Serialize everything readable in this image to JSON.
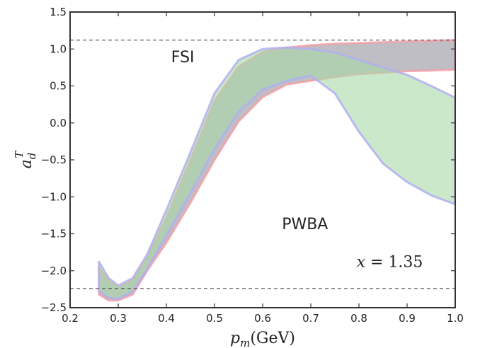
{
  "chart_data": {
    "type": "area",
    "title": "",
    "xlabel": "p_m(GeV)",
    "xlabel_parts": {
      "var": "p",
      "sub": "m",
      "unit": "(GeV)"
    },
    "ylabel": "a_d^T",
    "ylabel_parts": {
      "var": "a",
      "sub": "d",
      "sup": "T"
    },
    "xlim": [
      0.2,
      1.0
    ],
    "ylim": [
      -2.5,
      1.5
    ],
    "xticks": [
      0.2,
      0.3,
      0.4,
      0.5,
      0.6,
      0.7,
      0.8,
      0.9,
      1.0
    ],
    "xtick_labels": [
      "0.2",
      "0.3",
      "0.4",
      "0.5",
      "0.6",
      "0.7",
      "0.8",
      "0.9",
      "1.0"
    ],
    "yticks": [
      -2.5,
      -2.0,
      -1.5,
      -1.0,
      -0.5,
      0.0,
      0.5,
      1.0,
      1.5
    ],
    "ytick_labels": [
      "−2.5",
      "−2.0",
      "−1.5",
      "−1.0",
      "−0.5",
      "0.0",
      "0.5",
      "1.0",
      "1.5"
    ],
    "grid": false,
    "reference_lines": [
      {
        "y": 1.12,
        "style": "dashed"
      },
      {
        "y": -2.24,
        "style": "dashed"
      }
    ],
    "annotations": [
      {
        "text": "FSI",
        "x": 0.41,
        "y": 0.82
      },
      {
        "text": "PWBA",
        "x": 0.64,
        "y": -1.44
      },
      {
        "text": "x = 1.35",
        "var": "x",
        "rel": " = ",
        "val": "1.35",
        "x": 0.795,
        "y": -1.95
      }
    ],
    "series": [
      {
        "fill": "#a8a8b0",
        "edge": "#f4a0a8",
        "x": [
          0.26,
          0.28,
          0.3,
          0.33,
          0.36,
          0.4,
          0.45,
          0.5,
          0.55,
          0.6,
          0.65,
          0.7,
          0.75,
          0.8,
          0.85,
          0.9,
          0.95,
          1.0
        ],
        "upper": [
          -1.96,
          -2.13,
          -2.22,
          -2.13,
          -1.82,
          -1.28,
          -0.5,
          0.3,
          0.76,
          0.96,
          1.02,
          1.05,
          1.07,
          1.08,
          1.09,
          1.1,
          1.11,
          1.12
        ],
        "lower": [
          -2.32,
          -2.4,
          -2.4,
          -2.32,
          -2.0,
          -1.62,
          -1.08,
          -0.5,
          0.02,
          0.35,
          0.52,
          0.57,
          0.62,
          0.66,
          0.68,
          0.7,
          0.71,
          0.72
        ]
      },
      {
        "fill": "#a8d8a8",
        "edge": "#b0b0f0",
        "x": [
          0.26,
          0.28,
          0.3,
          0.33,
          0.36,
          0.4,
          0.45,
          0.5,
          0.55,
          0.6,
          0.65,
          0.7,
          0.75,
          0.8,
          0.85,
          0.9,
          0.95,
          1.0
        ],
        "upper": [
          -1.88,
          -2.1,
          -2.2,
          -2.1,
          -1.78,
          -1.18,
          -0.4,
          0.4,
          0.85,
          1.0,
          1.02,
          1.0,
          0.95,
          0.85,
          0.75,
          0.65,
          0.5,
          0.34
        ],
        "lower": [
          -2.27,
          -2.37,
          -2.38,
          -2.28,
          -1.98,
          -1.52,
          -0.95,
          -0.35,
          0.15,
          0.45,
          0.57,
          0.64,
          0.4,
          -0.12,
          -0.55,
          -0.8,
          -0.98,
          -1.1
        ]
      }
    ]
  }
}
